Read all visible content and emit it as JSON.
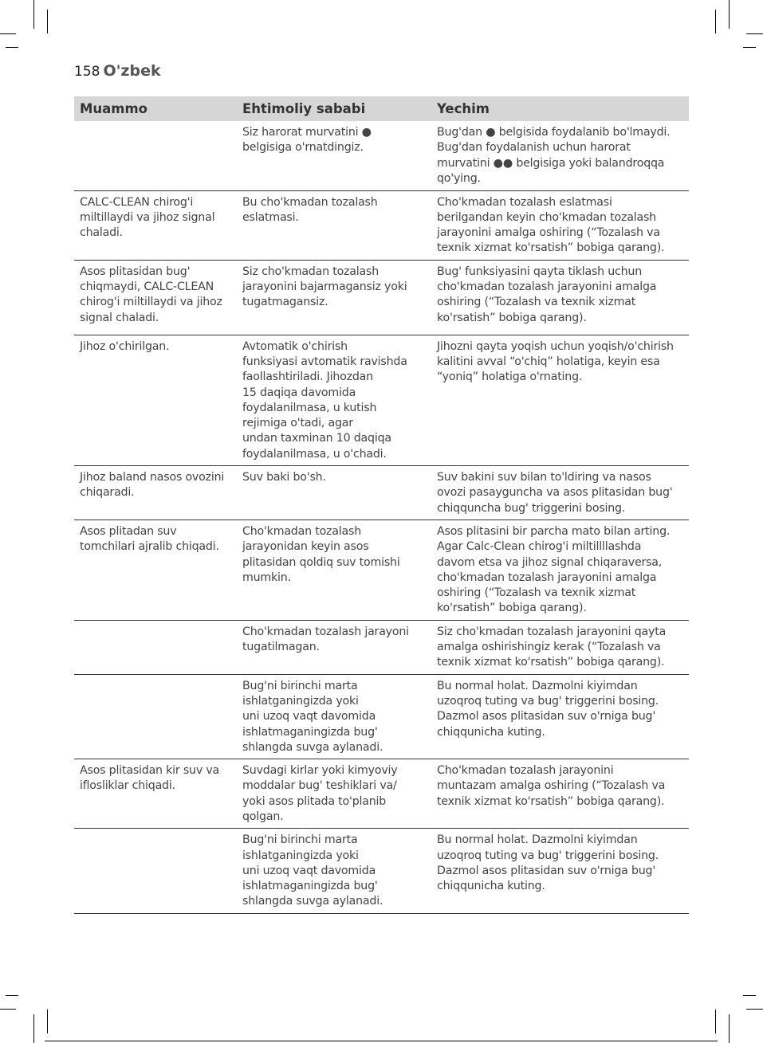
{
  "page": {
    "number": "158",
    "language": "O'zbek"
  },
  "table": {
    "headers": [
      "Muammo",
      "Ehtimoliy sababi",
      "Yechim"
    ],
    "rows": [
      [
        "",
        "Siz harorat murvatini ●\nbelgisiga o'rnatdingiz.",
        "Bug'dan ● belgisida foydalanib bo'lmaydi.\nBug'dan foydalanish uchun harorat\nmurvatini ●● belgisiga yoki balandroqqa\nqo'ying."
      ],
      [
        "CALC-CLEAN chirog'i\nmiltillaydi va jihoz signal\nchaladi.",
        "Bu cho'kmadan tozalash\neslatmasi.",
        "Cho'kmadan tozalash eslatmasi\nberilgandan keyin cho'kmadan tozalash\njarayonini amalga oshiring (“Tozalash va\ntexnik xizmat ko'rsatish” bobiga qarang)."
      ],
      [
        "Asos plitasidan bug'\nchiqmaydi, CALC-CLEAN\nchirog'i miltillaydi va jihoz\nsignal chaladi.",
        "Siz cho'kmadan tozalash\njarayonini bajarmagansiz yoki\ntugatmagansiz.",
        "Bug' funksiyasini qayta tiklash uchun\ncho'kmadan tozalash jarayonini amalga\noshiring (“Tozalash va texnik xizmat\nko'rsatish” bobiga qarang)."
      ],
      [
        "Jihoz o'chirilgan.",
        "Avtomatik o'chirish\nfunksiyasi avtomatik ravishda\nfaollashtiriladi. Jihozdan\n15 daqiqa davomida\nfoydalanilmasa, u kutish\nrejimiga o'tadi, agar\nundan taxminan 10 daqiqa\nfoydalanilmasa, u o'chadi.",
        "Jihozni qayta yoqish uchun yoqish/o'chirish\nkalitini avval “o'chiq” holatiga, keyin esa\n“yoniq” holatiga o'rnating."
      ],
      [
        "Jihoz baland nasos ovozini\nchiqaradi.",
        "Suv baki bo'sh.",
        "Suv bakini suv bilan to'ldiring va nasos\novozi pasayguncha va asos plitasidan bug'\nchiqquncha bug' triggerini bosing."
      ],
      [
        "Asos plitadan suv\ntomchilari ajralib chiqadi.",
        "Cho'kmadan tozalash\njarayonidan keyin asos\nplitasidan qoldiq suv tomishi\nmumkin.",
        "Asos plitasini bir parcha mato bilan arting.\nAgar Calc-Clean chirog'i miltillllashda\ndavom etsa va jihoz signal chiqaraversa,\ncho'kmadan tozalash jarayonini amalga\noshiring (“Tozalash va texnik xizmat\nko'rsatish” bobiga qarang)."
      ],
      [
        "",
        "Cho'kmadan tozalash jarayoni\ntugatilmagan.",
        "Siz cho'kmadan tozalash jarayonini qayta\namalga oshirishingiz kerak (“Tozalash va\ntexnik xizmat ko'rsatish” bobiga qarang)."
      ],
      [
        "",
        "Bug'ni birinchi marta\nishlatganingizda yoki\nuni uzoq vaqt davomida\nishlatmaganingizda bug'\nshlangda suvga aylanadi.",
        "Bu normal holat. Dazmolni kiyimdan\nuzoqroq tuting va bug' triggerini bosing.\nDazmol asos plitasidan suv o'rniga bug'\nchiqqunicha kuting."
      ],
      [
        "Asos plitasidan kir suv va\nifloslik­lar chiqadi.",
        "Suvdagi kirlar yoki kimyoviy\nmoddalar bug' teshiklari va/\nyoki asos plitada to'planib\nqolgan.",
        "Cho'kmadan tozalash jarayonini\nmuntazam amalga oshiring (“Tozalash va\ntexnik xizmat ko'rsatish” bobiga qarang)."
      ],
      [
        "",
        "Bug'ni birinchi marta\nishlatganingizda yoki\nuni uzoq vaqt davomida\nishlatmaganingizda bug'\nshlangda suvga aylanadi.",
        "Bu normal holat. Dazmolni kiyimdan\nuzoqroq tuting va bug' triggerini bosing.\nDazmol asos plitasidan suv o'rniga bug'\nchiqqunicha kuting."
      ]
    ]
  }
}
